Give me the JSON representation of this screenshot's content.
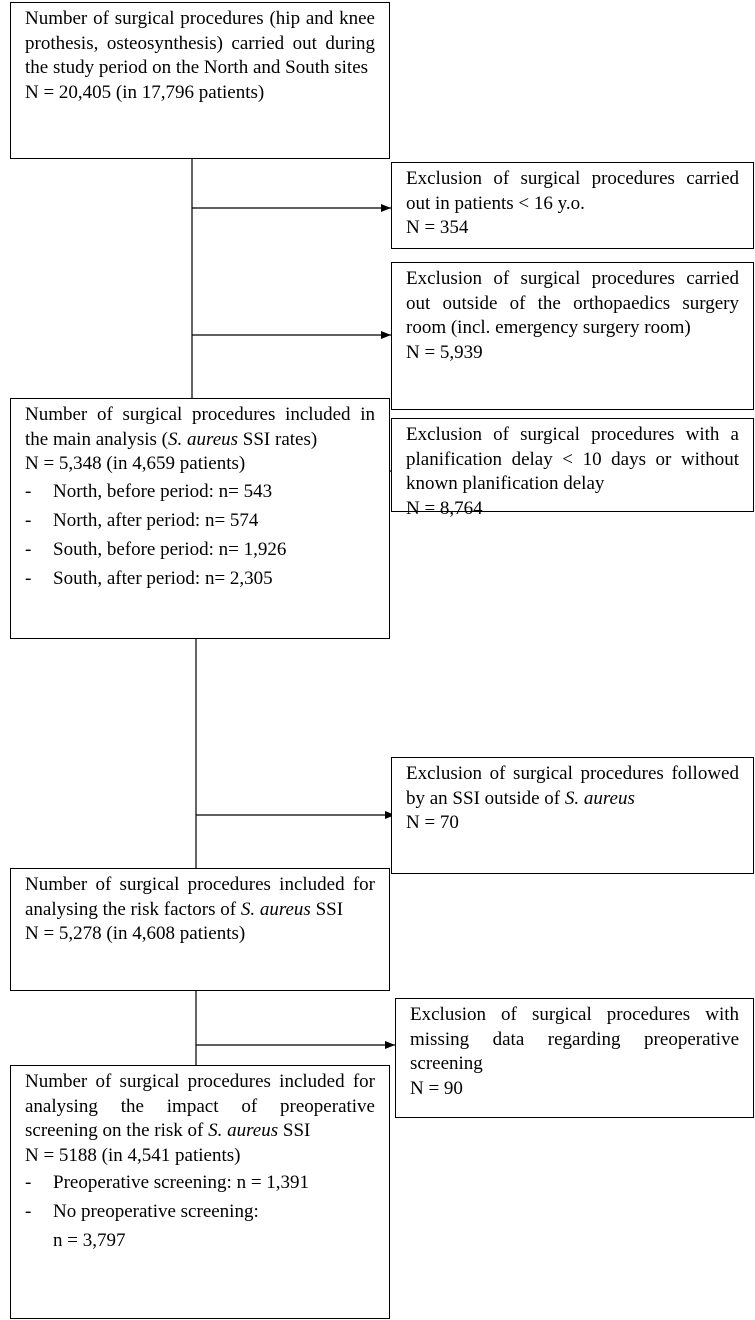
{
  "boxes": [
    {
      "paragraphs": [
        [
          {
            "text": "Number of surgical procedures (hip and knee prothesis, osteosynthesis) carried out during the study period on the North and South sites"
          }
        ],
        [
          {
            "text": "N = 20,405 (in 17,796 patients)"
          }
        ]
      ],
      "items": []
    },
    {
      "paragraphs": [
        [
          {
            "text": "Number of surgical procedures included in the main analysis ("
          },
          {
            "text": "S. aureus",
            "italic": true
          },
          {
            "text": " SSI rates)"
          }
        ],
        [
          {
            "text": "N = 5,348 (in 4,659 patients)"
          }
        ]
      ],
      "items": [
        [
          "North, before period: n= 543"
        ],
        [
          "North, after period: n= 574"
        ],
        [
          "South, before period: n= 1,926"
        ],
        [
          "South, after period: n= 2,305"
        ]
      ]
    },
    {
      "paragraphs": [
        [
          {
            "text": "Number of surgical procedures included for analysing the risk factors of "
          },
          {
            "text": "S. aureus",
            "italic": true
          },
          {
            "text": " SSI"
          }
        ],
        [
          {
            "text": "N = 5,278 (in 4,608 patients)"
          }
        ]
      ],
      "items": []
    },
    {
      "paragraphs": [
        [
          {
            "text": "Number of surgical procedures included for analysing the impact of preoperative screening on the risk of "
          },
          {
            "text": "S. aureus",
            "italic": true
          },
          {
            "text": " SSI"
          }
        ],
        [
          {
            "text": "N = 5188 (in 4,541 patients)"
          }
        ]
      ],
      "items": [
        [
          "Preoperative screening: n = 1,391"
        ],
        [
          "No preoperative screening:",
          "n = 3,797"
        ]
      ]
    }
  ],
  "exclusions": [
    {
      "paragraphs": [
        [
          {
            "text": "Exclusion of surgical procedures carried out in patients < 16 y.o."
          }
        ],
        [
          {
            "text": "N = 354"
          }
        ]
      ]
    },
    {
      "paragraphs": [
        [
          {
            "text": "Exclusion of surgical procedures carried out outside of the orthopaedics surgery room (incl. emergency surgery room)"
          }
        ],
        [
          {
            "text": "N = 5,939"
          }
        ]
      ]
    },
    {
      "paragraphs": [
        [
          {
            "text": "Exclusion of surgical procedures with a planification delay < 10 days or without known planification delay"
          }
        ],
        [
          {
            "text": "N = 8,764"
          }
        ]
      ]
    },
    {
      "paragraphs": [
        [
          {
            "text": "Exclusion of surgical procedures followed by an SSI outside of "
          },
          {
            "text": "S. aureus",
            "italic": true
          }
        ],
        [
          {
            "text": "N = 70"
          }
        ]
      ]
    },
    {
      "paragraphs": [
        [
          {
            "text": "Exclusion of surgical procedures with missing data regarding preoperative screening"
          }
        ],
        [
          {
            "text": "N = 90"
          }
        ]
      ]
    }
  ]
}
